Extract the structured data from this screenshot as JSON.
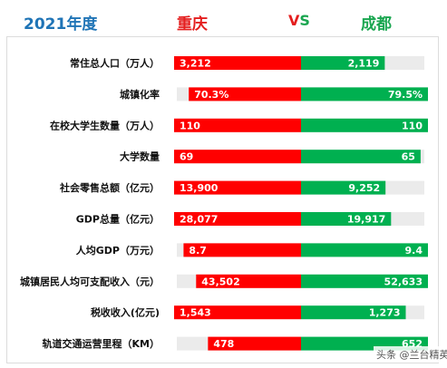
{
  "header": {
    "year": "2021年度",
    "left_city": "重庆",
    "vs_v": "V",
    "vs_s": "S",
    "right_city": "成都"
  },
  "colors": {
    "left": "#ff0000",
    "right": "#00b050",
    "track": "#ebebeb",
    "year": "#1f74b6"
  },
  "watermark": "头条 @兰台精英",
  "chart_data": {
    "type": "bar",
    "orientation": "horizontal-diverging",
    "categories": [
      "常住总人口（万人）",
      "城镇化率",
      "在校大学生数量（万人）",
      "大学数量",
      "社会零售总额（亿元）",
      "GDP总量（亿元）",
      "人均GDP（万元）",
      "城镇居民人均可支配收入（元）",
      "税收收入(亿元)",
      "轨道交通运营里程（KM）"
    ],
    "series": [
      {
        "name": "重庆",
        "values": [
          3212,
          70.3,
          110,
          69,
          13900,
          28077,
          8.7,
          43502,
          1543,
          478
        ],
        "labels": [
          "3,212",
          "70.3%",
          "110",
          "69",
          "13,900",
          "28,077",
          "8.7",
          "43,502",
          "1,543",
          "478"
        ]
      },
      {
        "name": "成都",
        "values": [
          2119,
          79.5,
          110,
          65,
          9252,
          19917,
          9.4,
          52633,
          1273,
          652
        ],
        "labels": [
          "2,119",
          "79.5%",
          "110",
          "65",
          "9,252",
          "19,917",
          "9.4",
          "52,633",
          "1,273",
          "652"
        ]
      }
    ],
    "grid": false,
    "legend": "top"
  }
}
